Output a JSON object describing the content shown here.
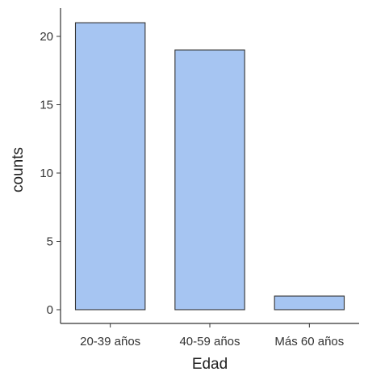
{
  "chart_data": {
    "type": "bar",
    "categories": [
      "20-39 años",
      "40-59 años",
      "Más 60 años"
    ],
    "values": [
      21,
      19,
      1
    ],
    "xlabel": "Edad",
    "ylabel": "counts",
    "ylim": [
      0,
      22
    ],
    "yticks": [
      0,
      5,
      10,
      15,
      20
    ],
    "grid": false,
    "legend": "none",
    "bar_fill": "#a6c5f2",
    "bar_stroke": "#333333",
    "axis_color": "#333333"
  }
}
